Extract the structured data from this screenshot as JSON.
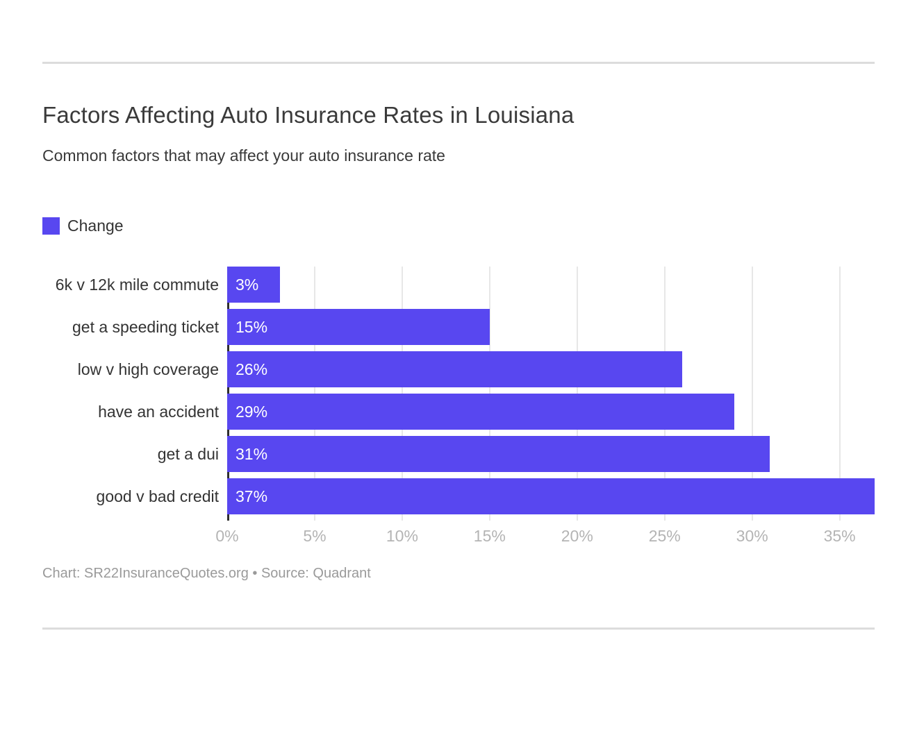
{
  "chart": {
    "title": "Factors Affecting Auto Insurance Rates in Louisiana",
    "subtitle": "Common factors that may affect your auto insurance rate",
    "legend": {
      "label": "Change",
      "color": "#5847f0"
    },
    "footer": "Chart: SR22InsuranceQuotes.org • Source: Quadrant"
  },
  "chart_data": {
    "type": "bar",
    "orientation": "horizontal",
    "title": "Factors Affecting Auto Insurance Rates in Louisiana",
    "subtitle": "Common factors that may affect your auto insurance rate",
    "series_name": "Change",
    "categories": [
      "6k v 12k mile commute",
      "get a speeding ticket",
      "low v high coverage",
      "have an accident",
      "get a dui",
      "good v bad credit"
    ],
    "values": [
      3,
      15,
      26,
      29,
      31,
      37
    ],
    "value_labels": [
      "3%",
      "15%",
      "26%",
      "29%",
      "31%",
      "37%"
    ],
    "xlabel": "",
    "ylabel": "",
    "xlim": [
      0,
      37
    ],
    "x_ticks": [
      "0%",
      "5%",
      "10%",
      "15%",
      "20%",
      "25%",
      "30%",
      "35%"
    ],
    "x_tick_values": [
      0,
      5,
      10,
      15,
      20,
      25,
      30,
      35
    ],
    "grid": true,
    "legend_position": "top-left",
    "bar_color": "#5847f0",
    "grid_color": "#e7e7e7",
    "axis_line_color": "#2e2e2e",
    "tick_label_color": "#b4b4b4"
  }
}
